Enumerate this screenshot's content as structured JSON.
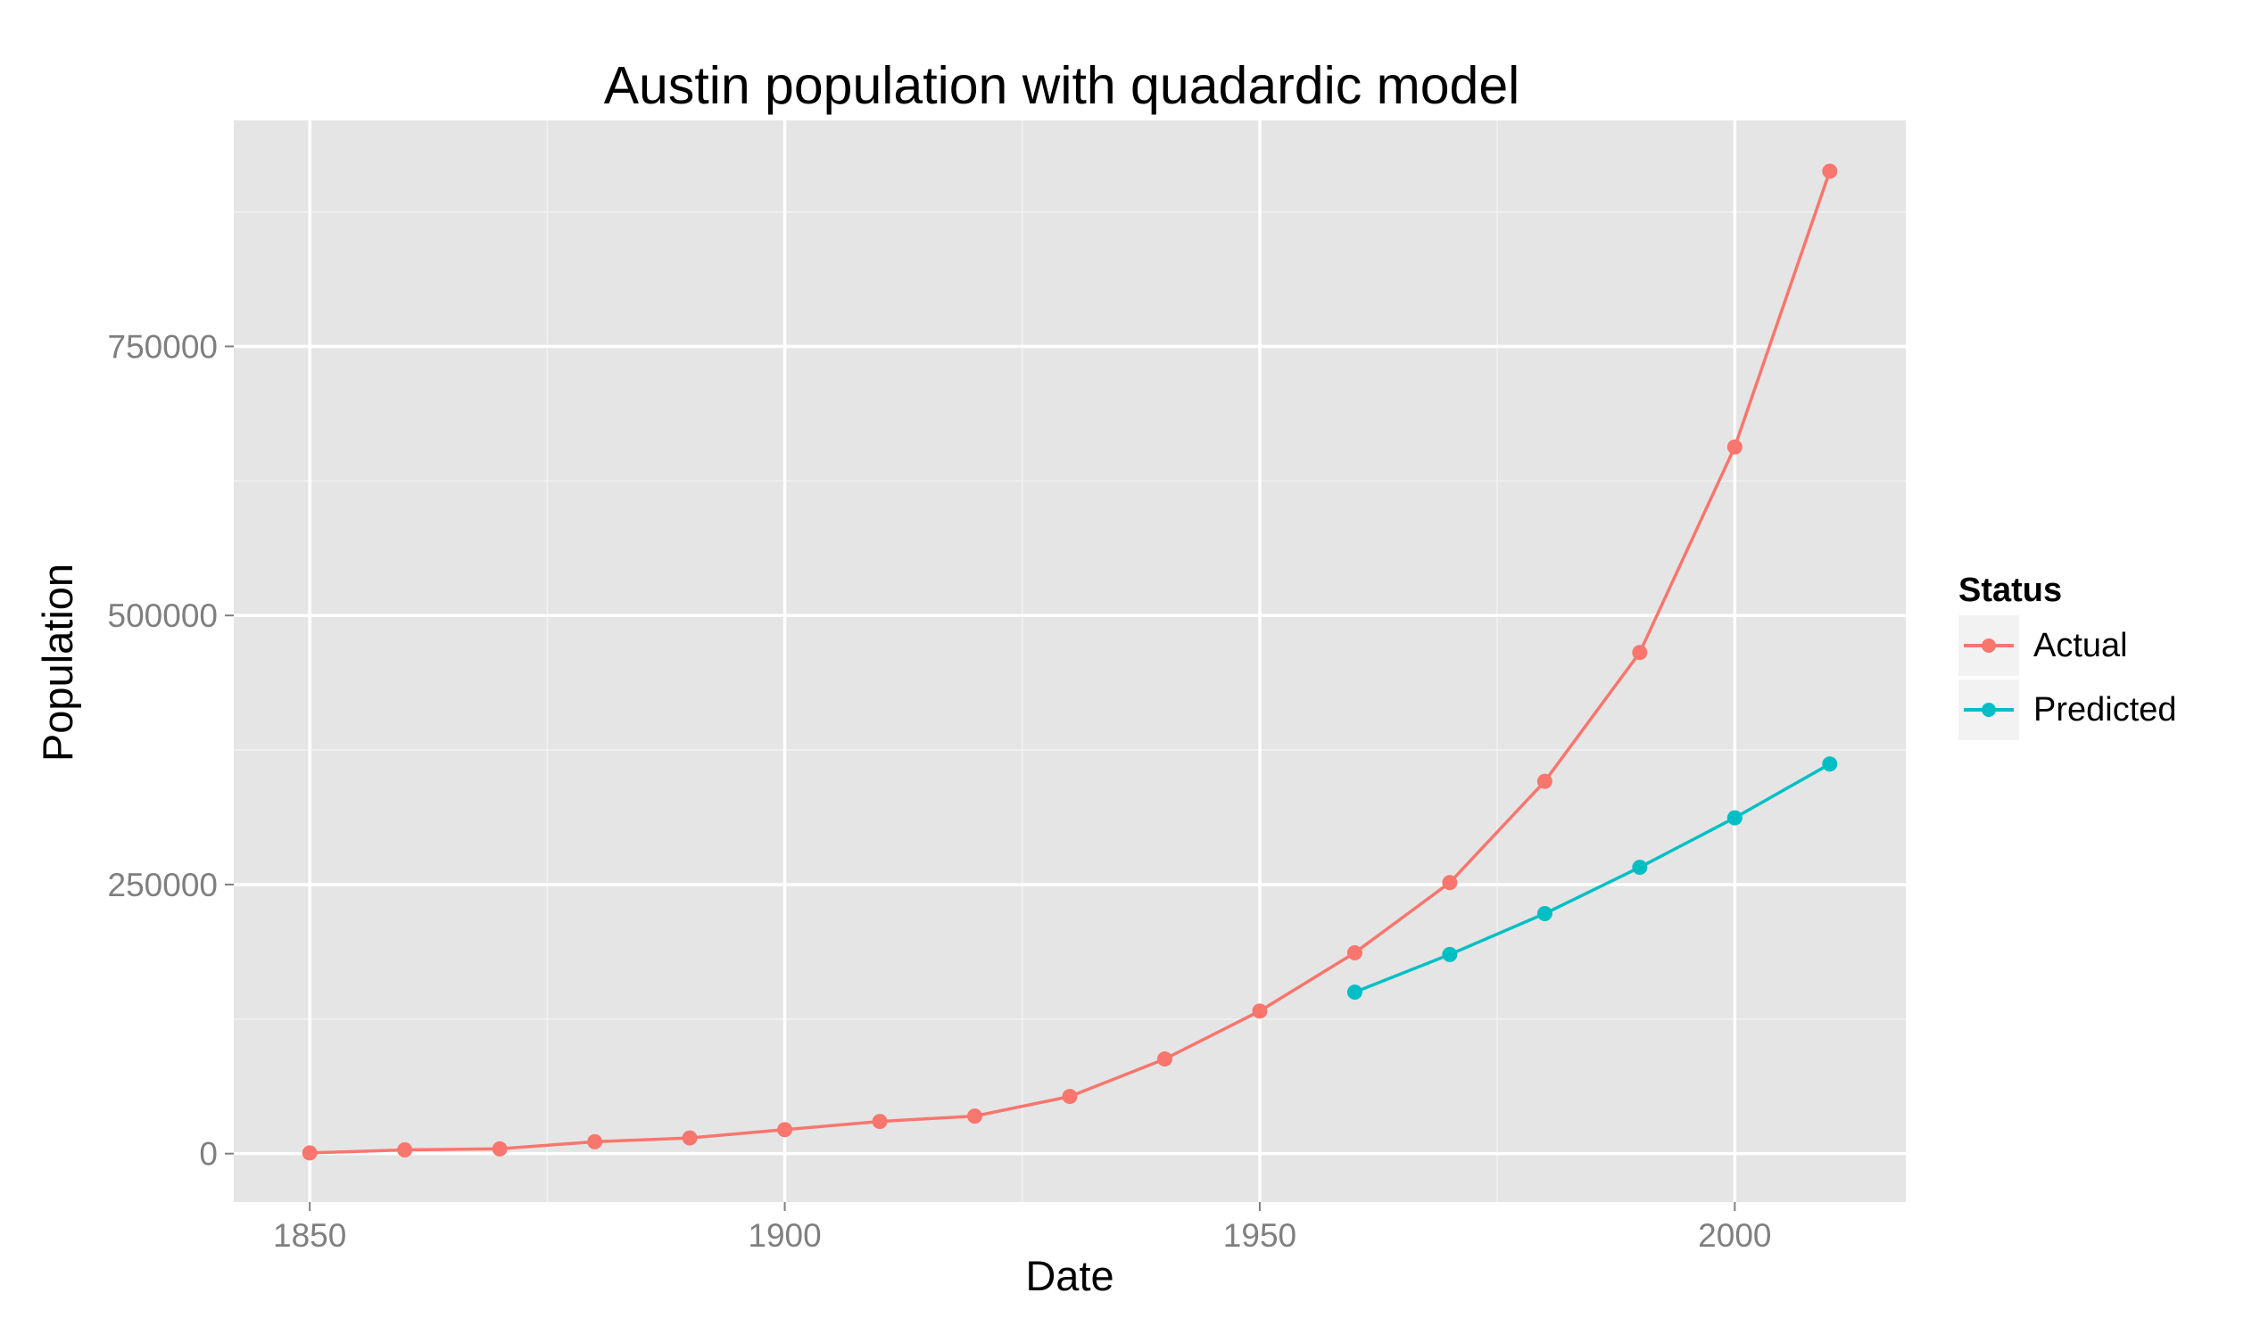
{
  "chart_data": {
    "type": "line",
    "title": "Austin population with quadardic model",
    "xlabel": "Date",
    "ylabel": "Population",
    "xlim": [
      1842,
      2018
    ],
    "ylim": [
      -45000,
      960000
    ],
    "x_ticks": [
      1850,
      1900,
      1950,
      2000
    ],
    "x_tick_labels": [
      "1850",
      "1900",
      "1950",
      "2000"
    ],
    "x_minor_ticks": [
      1875,
      1925,
      1975
    ],
    "y_ticks": [
      0,
      250000,
      500000,
      750000
    ],
    "y_tick_labels": [
      "0",
      "250000",
      "500000",
      "750000"
    ],
    "y_minor_ticks": [
      125000,
      375000,
      625000,
      875000
    ],
    "grid": true,
    "panel_background": "#e5e5e5",
    "legend": {
      "title": "Status",
      "placement": "right"
    },
    "series": [
      {
        "name": "Actual",
        "color": "#f8766d",
        "x": [
          1850,
          1860,
          1870,
          1880,
          1890,
          1900,
          1910,
          1920,
          1930,
          1940,
          1950,
          1960,
          1970,
          1980,
          1990,
          2000,
          2010
        ],
        "y": [
          629,
          3494,
          4428,
          11013,
          14575,
          22258,
          29860,
          34876,
          53120,
          87930,
          132459,
          186545,
          251808,
          345890,
          465622,
          656562,
          912791
        ]
      },
      {
        "name": "Predicted",
        "color": "#00bfc4",
        "x": [
          1960,
          1970,
          1980,
          1990,
          2000,
          2010
        ],
        "y": [
          150000,
          185000,
          223000,
          266000,
          312000,
          362000
        ]
      }
    ]
  }
}
